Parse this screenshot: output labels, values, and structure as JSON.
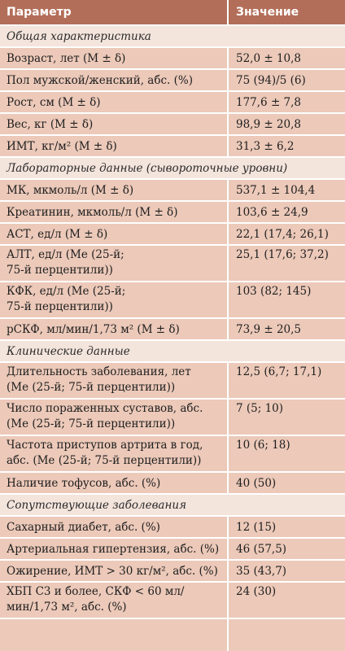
{
  "header": {
    "col1": "Параметр",
    "col2": "Значение"
  },
  "sections": [
    {
      "title": "Общая характеристика",
      "rows": [
        {
          "param": "Возраст, лет (M ± δ)",
          "value": "52,0 ± 10,8"
        },
        {
          "param": "Пол мужской/женский, абс. (%)",
          "value": "75 (94)/5 (6)"
        },
        {
          "param": "Рост, см (M ± δ)",
          "value": "177,6 ± 7,8"
        },
        {
          "param": "Вес, кг (M ± δ)",
          "value": "98,9 ± 20,8"
        },
        {
          "param": "ИМТ, кг/м² (M ± δ)",
          "value": "31,3 ± 6,2"
        }
      ]
    },
    {
      "title": "Лабораторные данные (сывороточные уровни)",
      "rows": [
        {
          "param": "МК, мкмоль/л (M ± δ)",
          "value": "537,1 ± 104,4"
        },
        {
          "param": "Креатинин, мкмоль/л (M ± δ)",
          "value": "103,6 ± 24,9"
        },
        {
          "param": "АСТ, ед/л (M ± δ)",
          "value": "22,1 (17,4; 26,1)"
        },
        {
          "param": "АЛТ, ед/л (Me (25-й;\n75-й перцентили))",
          "value": "25,1 (17,6; 37,2)"
        },
        {
          "param": "КФК, ед/л (Me (25-й;\n75-й перцентили))",
          "value": "103 (82; 145)"
        },
        {
          "param": "рСКФ, мл/мин/1,73 м² (M ± δ)",
          "value": "73,9 ± 20,5"
        }
      ]
    },
    {
      "title": "Клинические данные",
      "rows": [
        {
          "param": "Длительность заболевания, лет\n(Me (25-й; 75-й перцентили))",
          "value": "12,5 (6,7; 17,1)"
        },
        {
          "param": "Число пораженных суставов, абс.\n(Me (25-й; 75-й перцентили))",
          "value": "7 (5; 10)"
        },
        {
          "param": "Частота приступов артрита в год,\nабс. (Me (25-й; 75-й перцентили))",
          "value": "10 (6; 18)"
        },
        {
          "param": "Наличие тофусов, абс. (%)",
          "value": "40 (50)"
        }
      ]
    },
    {
      "title": "Сопутствующие заболевания",
      "rows": [
        {
          "param": "Сахарный диабет, абс. (%)",
          "value": "12 (15)"
        },
        {
          "param": "Артериальная гипертензия, абс. (%)",
          "value": "46 (57,5)"
        },
        {
          "param": "Ожирение, ИМТ > 30 кг/м², абс. (%)",
          "value": "35 (43,7)"
        },
        {
          "param": "ХБП С3 и более, СКФ < 60 мл/\nмин/1,73 м², абс. (%)",
          "value": "24 (30)"
        }
      ]
    }
  ]
}
